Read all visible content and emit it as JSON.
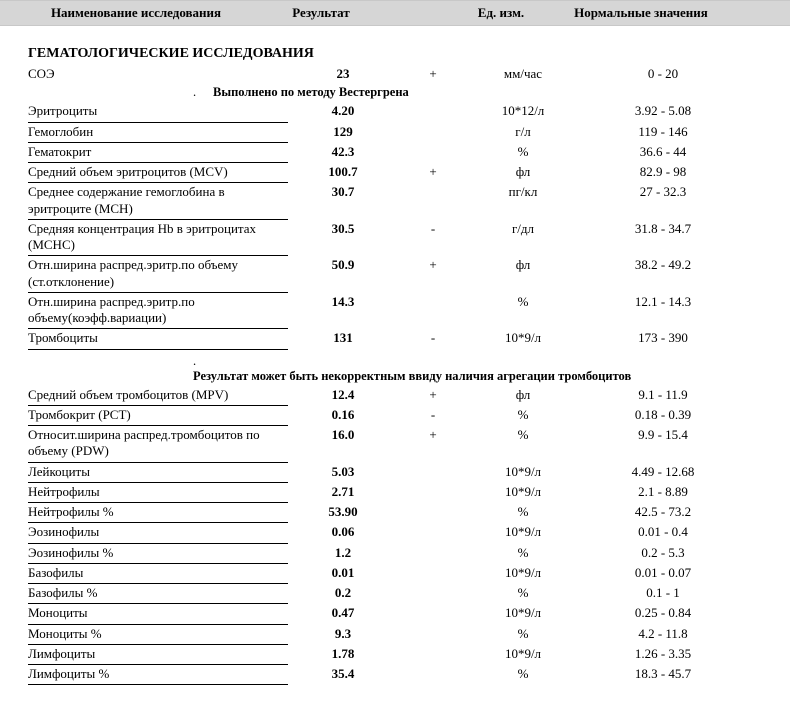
{
  "header": {
    "name": "Наименование исследования",
    "result": "Результат",
    "unit": "Ед. изм.",
    "normal": "Нормальные значения"
  },
  "section_title": "ГЕМАТОЛОГИЧЕСКИЕ ИССЛЕДОВАНИЯ",
  "note1": "Выполнено по методу Вестергрена",
  "note2": "Результат может быть некорректным ввиду наличия агрегации тромбоцитов",
  "rows": [
    {
      "name": "СОЭ",
      "result": "23",
      "flag": "+",
      "unit": "мм/час",
      "norm": "0 - 20",
      "underline": false
    },
    {
      "name": "Эритроциты",
      "result": "4.20",
      "flag": "",
      "unit": "10*12/л",
      "norm": "3.92 - 5.08",
      "underline": true
    },
    {
      "name": "Гемоглобин",
      "result": "129",
      "flag": "",
      "unit": "г/л",
      "norm": "119 - 146",
      "underline": true
    },
    {
      "name": "Гематокрит",
      "result": "42.3",
      "flag": "",
      "unit": "%",
      "norm": "36.6 - 44",
      "underline": true
    },
    {
      "name": "Средний объем эритроцитов (MCV)",
      "result": "100.7",
      "flag": "+",
      "unit": "фл",
      "norm": "82.9 - 98",
      "underline": true
    },
    {
      "name": "Среднее содержание гемоглобина в эритроците (MCH)",
      "result": "30.7",
      "flag": "",
      "unit": "пг/кл",
      "norm": "27 - 32.3",
      "underline": true
    },
    {
      "name": "Средняя концентрация Hb в эритроцитах (MCHC)",
      "result": "30.5",
      "flag": "-",
      "unit": "г/дл",
      "norm": "31.8 - 34.7",
      "underline": true
    },
    {
      "name": "Отн.ширина распред.эритр.по объему (ст.отклонение)",
      "result": "50.9",
      "flag": "+",
      "unit": "фл",
      "norm": "38.2 - 49.2",
      "underline": true
    },
    {
      "name": "Отн.ширина распред.эритр.по объему(коэфф.вариации)",
      "result": "14.3",
      "flag": "",
      "unit": "%",
      "norm": "12.1 - 14.3",
      "underline": true
    },
    {
      "name": "Тромбоциты",
      "result": "131",
      "flag": "-",
      "unit": "10*9/л",
      "norm": "173 - 390",
      "underline": true
    },
    {
      "name": "Средний объем тромбоцитов (MPV)",
      "result": "12.4",
      "flag": "+",
      "unit": "фл",
      "norm": "9.1 - 11.9",
      "underline": true
    },
    {
      "name": "Тромбокрит (PCT)",
      "result": "0.16",
      "flag": "-",
      "unit": "%",
      "norm": "0.18 - 0.39",
      "underline": true
    },
    {
      "name": "Относит.ширина распред.тромбоцитов по объему (PDW)",
      "result": "16.0",
      "flag": "+",
      "unit": "%",
      "norm": "9.9 - 15.4",
      "underline": true
    },
    {
      "name": "Лейкоциты",
      "result": "5.03",
      "flag": "",
      "unit": "10*9/л",
      "norm": "4.49 - 12.68",
      "underline": true
    },
    {
      "name": "Нейтрофилы",
      "result": "2.71",
      "flag": "",
      "unit": "10*9/л",
      "norm": "2.1 - 8.89",
      "underline": true
    },
    {
      "name": "Нейтрофилы %",
      "result": "53.90",
      "flag": "",
      "unit": "%",
      "norm": "42.5 - 73.2",
      "underline": true
    },
    {
      "name": "Эозинофилы",
      "result": "0.06",
      "flag": "",
      "unit": "10*9/л",
      "norm": "0.01 - 0.4",
      "underline": true
    },
    {
      "name": "Эозинофилы %",
      "result": "1.2",
      "flag": "",
      "unit": "%",
      "norm": "0.2 - 5.3",
      "underline": true
    },
    {
      "name": "Базофилы",
      "result": "0.01",
      "flag": "",
      "unit": "10*9/л",
      "norm": "0.01 - 0.07",
      "underline": true
    },
    {
      "name": "Базофилы %",
      "result": "0.2",
      "flag": "",
      "unit": "%",
      "norm": "0.1 - 1",
      "underline": true
    },
    {
      "name": "Моноциты",
      "result": "0.47",
      "flag": "",
      "unit": "10*9/л",
      "norm": "0.25 - 0.84",
      "underline": true
    },
    {
      "name": "Моноциты %",
      "result": "9.3",
      "flag": "",
      "unit": "%",
      "norm": "4.2 - 11.8",
      "underline": true
    },
    {
      "name": "Лимфоциты",
      "result": "1.78",
      "flag": "",
      "unit": "10*9/л",
      "norm": "1.26 - 3.35",
      "underline": true
    },
    {
      "name": "Лимфоциты %",
      "result": "35.4",
      "flag": "",
      "unit": "%",
      "norm": "18.3 - 45.7",
      "underline": true
    }
  ]
}
